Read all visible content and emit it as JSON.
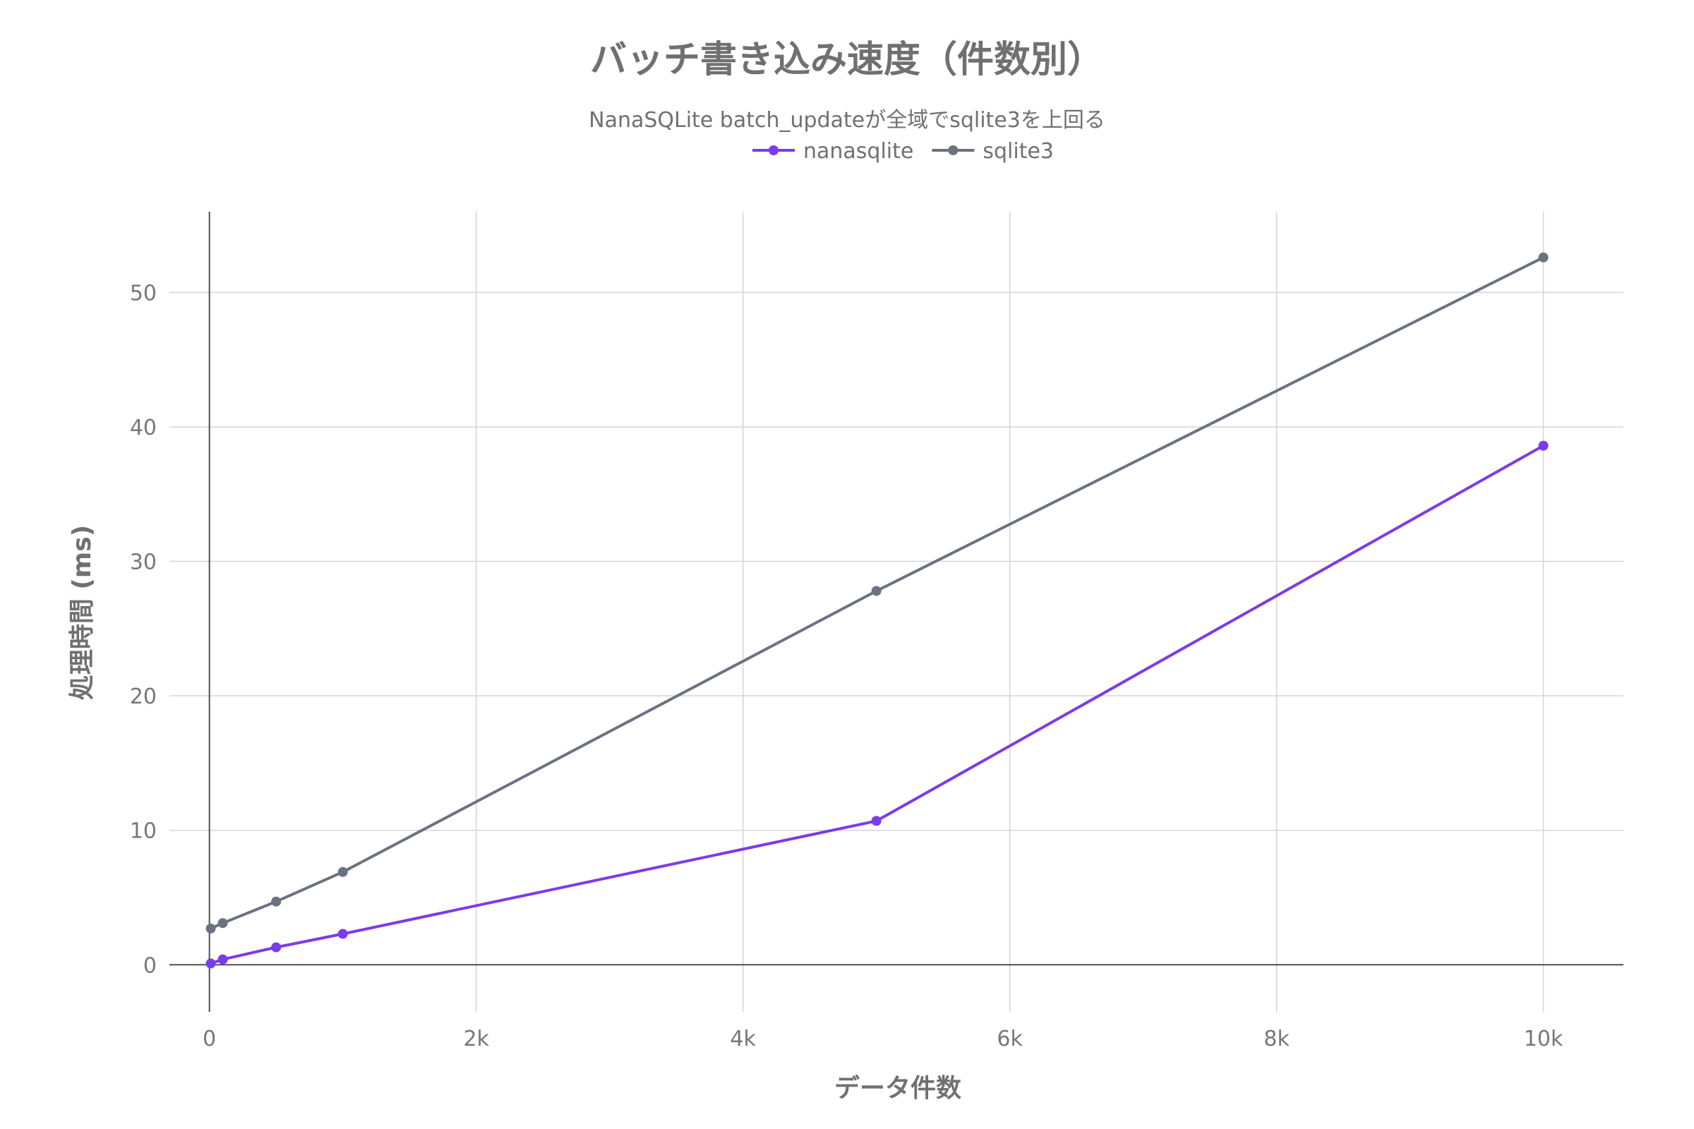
{
  "chart_data": {
    "type": "line",
    "title": "バッチ書き込み速度（件数別）",
    "subtitle": "NanaSQLite batch_updateが全域でsqlite3を上回る",
    "xlabel": "データ件数",
    "ylabel": "処理時間 (ms)",
    "xlim": [
      -300,
      10600
    ],
    "ylim": [
      -3.5,
      56
    ],
    "x_ticks": [
      0,
      2000,
      4000,
      6000,
      8000,
      10000
    ],
    "x_tick_labels": [
      "0",
      "2k",
      "4k",
      "6k",
      "8k",
      "10k"
    ],
    "y_ticks": [
      0,
      10,
      20,
      30,
      40,
      50
    ],
    "y_tick_labels": [
      "0",
      "10",
      "20",
      "30",
      "40",
      "50"
    ],
    "grid": true,
    "legend_position": "top-center",
    "series": [
      {
        "name": "nanasqlite",
        "color": "#7c3aed",
        "x": [
          10,
          100,
          500,
          1000,
          5000,
          10000
        ],
        "y": [
          0.1,
          0.4,
          1.3,
          2.3,
          10.7,
          38.6
        ]
      },
      {
        "name": "sqlite3",
        "color": "#6b7280",
        "x": [
          10,
          100,
          500,
          1000,
          5000,
          10000
        ],
        "y": [
          2.7,
          3.1,
          4.7,
          6.9,
          27.8,
          52.6
        ]
      }
    ]
  }
}
